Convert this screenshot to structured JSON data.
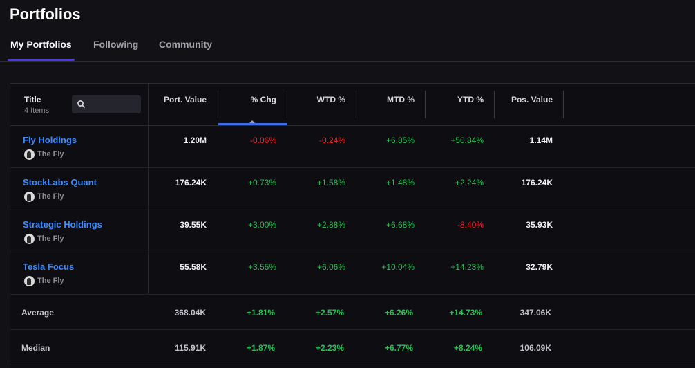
{
  "page_title": "Portfolios",
  "tabs": [
    {
      "label": "My Portfolios",
      "active": true
    },
    {
      "label": "Following",
      "active": false
    },
    {
      "label": "Community",
      "active": false
    }
  ],
  "table": {
    "title_header": "Title",
    "item_count": "4 Items",
    "search_placeholder": "",
    "columns": [
      "Port. Value",
      "% Chg",
      "WTD %",
      "MTD %",
      "YTD %",
      "Pos. Value"
    ],
    "sorted_column": "% Chg",
    "rows": [
      {
        "name": "Fly Holdings",
        "owner": "The Fly",
        "port_value": "1.20M",
        "chg": "-0.06%",
        "wtd": "-0.24%",
        "mtd": "+6.85%",
        "ytd": "+50.84%",
        "pos_value": "1.14M"
      },
      {
        "name": "StockLabs Quant",
        "owner": "The Fly",
        "port_value": "176.24K",
        "chg": "+0.73%",
        "wtd": "+1.58%",
        "mtd": "+1.48%",
        "ytd": "+2.24%",
        "pos_value": "176.24K"
      },
      {
        "name": "Strategic Holdings",
        "owner": "The Fly",
        "port_value": "39.55K",
        "chg": "+3.00%",
        "wtd": "+2.88%",
        "mtd": "+6.68%",
        "ytd": "-8.40%",
        "pos_value": "35.93K"
      },
      {
        "name": "Tesla Focus",
        "owner": "The Fly",
        "port_value": "55.58K",
        "chg": "+3.55%",
        "wtd": "+6.06%",
        "mtd": "+10.04%",
        "ytd": "+14.23%",
        "pos_value": "32.79K"
      }
    ],
    "summary": [
      {
        "label": "Average",
        "port_value": "368.04K",
        "chg": "+1.81%",
        "wtd": "+2.57%",
        "mtd": "+6.26%",
        "ytd": "+14.73%",
        "pos_value": "347.06K"
      },
      {
        "label": "Median",
        "port_value": "115.91K",
        "chg": "+1.87%",
        "wtd": "+2.23%",
        "mtd": "+6.77%",
        "ytd": "+8.24%",
        "pos_value": "106.09K"
      }
    ]
  },
  "colors": {
    "positive": "#2bc253",
    "negative": "#f0262d",
    "link": "#3d8bff",
    "tab_accent": "#4a35e8",
    "sort_accent": "#3d6ee8"
  },
  "icons": {
    "search": "search-icon",
    "avatar": "owner-avatar"
  }
}
